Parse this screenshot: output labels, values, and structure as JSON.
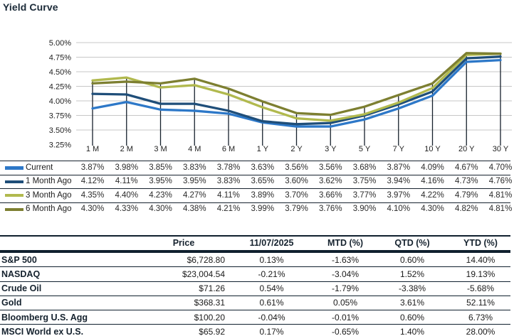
{
  "title": "Yield Curve",
  "colors": {
    "navy_text": "#15222e",
    "gridline": "#c7c7c7",
    "drop_line": "#16212c",
    "value_text": "#2b2b2b"
  },
  "chart_data": {
    "type": "line",
    "title": "Yield Curve",
    "categories": [
      "1 M",
      "2 M",
      "3 M",
      "4 M",
      "6 M",
      "1 Y",
      "2 Y",
      "3 Y",
      "5 Y",
      "7 Y",
      "10 Y",
      "20 Y",
      "30 Y"
    ],
    "y_ticks": [
      "5.00%",
      "4.75%",
      "4.50%",
      "4.25%",
      "4.00%",
      "3.75%",
      "3.50%",
      "3.25%"
    ],
    "ylim": [
      3.25,
      5.0
    ],
    "grid": "horizontal",
    "legend_position": "left-table-below",
    "series": [
      {
        "name": "Current",
        "color": "#2d78c8",
        "swatch_height": 5,
        "values": [
          3.87,
          3.98,
          3.85,
          3.83,
          3.78,
          3.63,
          3.56,
          3.56,
          3.68,
          3.87,
          4.09,
          4.67,
          4.7
        ]
      },
      {
        "name": "1 Month Ago",
        "color": "#1f4e79",
        "swatch_height": 4,
        "values": [
          4.12,
          4.11,
          3.95,
          3.95,
          3.83,
          3.65,
          3.6,
          3.62,
          3.75,
          3.94,
          4.16,
          4.73,
          4.76
        ]
      },
      {
        "name": "3 Month Ago",
        "color": "#b1b94e",
        "swatch_height": 4,
        "values": [
          4.35,
          4.4,
          4.23,
          4.27,
          4.11,
          3.89,
          3.7,
          3.66,
          3.77,
          3.97,
          4.22,
          4.79,
          4.81
        ]
      },
      {
        "name": "6 Month Ago",
        "color": "#7d7f31",
        "swatch_height": 4,
        "values": [
          4.3,
          4.33,
          4.3,
          4.38,
          4.21,
          3.99,
          3.79,
          3.76,
          3.9,
          4.1,
          4.3,
          4.82,
          4.81
        ]
      }
    ]
  },
  "market_table": {
    "headers": {
      "price": "Price",
      "day": "11/07/2025",
      "mtd": "MTD (%)",
      "qtd": "QTD (%)",
      "ytd": "YTD (%)"
    },
    "rows": [
      {
        "label": "S&P 500",
        "price": "$6,728.80",
        "day": "0.13%",
        "mtd": "-1.63%",
        "qtd": "0.60%",
        "ytd": "14.40%"
      },
      {
        "label": "NASDAQ",
        "price": "$23,004.54",
        "day": "-0.21%",
        "mtd": "-3.04%",
        "qtd": "1.52%",
        "ytd": "19.13%"
      },
      {
        "label": "Crude Oil",
        "price": "$71.26",
        "day": "0.54%",
        "mtd": "-1.79%",
        "qtd": "-3.38%",
        "ytd": "-5.68%"
      },
      {
        "label": "Gold",
        "price": "$368.31",
        "day": "0.61%",
        "mtd": "0.05%",
        "qtd": "3.61%",
        "ytd": "52.11%"
      },
      {
        "label": "Bloomberg U.S. Agg",
        "price": "$100.20",
        "day": "-0.04%",
        "mtd": "-0.01%",
        "qtd": "0.60%",
        "ytd": "6.73%"
      },
      {
        "label": "MSCI World ex U.S.",
        "price": "$65.92",
        "day": "0.17%",
        "mtd": "-0.65%",
        "qtd": "1.40%",
        "ytd": "28.00%"
      }
    ]
  }
}
